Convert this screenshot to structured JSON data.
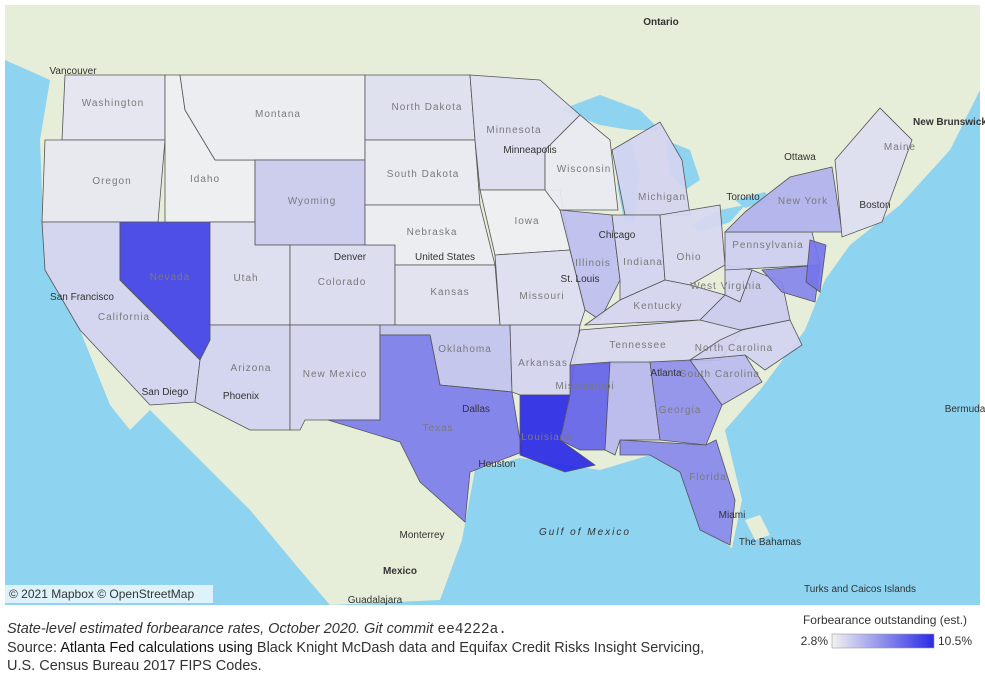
{
  "states": [
    {
      "label": "Washington",
      "value": 3.3
    },
    {
      "label": "Oregon",
      "value": 3.2
    },
    {
      "label": "California",
      "value": 4.0
    },
    {
      "label": "Nevada",
      "value": 9.6
    },
    {
      "label": "Idaho",
      "value": 2.9
    },
    {
      "label": "Montana",
      "value": 3.0
    },
    {
      "label": "Wyoming",
      "value": 4.3
    },
    {
      "label": "Utah",
      "value": 3.6
    },
    {
      "label": "Colorado",
      "value": 3.7
    },
    {
      "label": "Arizona",
      "value": 4.0
    },
    {
      "label": "New Mexico",
      "value": 3.9
    },
    {
      "label": "North Dakota",
      "value": 3.5
    },
    {
      "label": "South Dakota",
      "value": 3.1
    },
    {
      "label": "Nebraska",
      "value": 3.0
    },
    {
      "label": "Kansas",
      "value": 3.4
    },
    {
      "label": "Oklahoma",
      "value": 4.6
    },
    {
      "label": "Texas",
      "value": 7.3
    },
    {
      "label": "Minnesota",
      "value": 3.6
    },
    {
      "label": "Iowa",
      "value": 2.9
    },
    {
      "label": "Missouri",
      "value": 3.6
    },
    {
      "label": "Arkansas",
      "value": 3.9
    },
    {
      "label": "Louisiana",
      "value": 10.5
    },
    {
      "label": "Wisconsin",
      "value": 3.1
    },
    {
      "label": "Illinois",
      "value": 4.8
    },
    {
      "label": "Michigan",
      "value": 3.9
    },
    {
      "label": "Indiana",
      "value": 4.0
    },
    {
      "label": "Ohio",
      "value": 3.8
    },
    {
      "label": "Kentucky",
      "value": 3.9
    },
    {
      "label": "Tennessee",
      "value": 3.8
    },
    {
      "label": "Mississippi",
      "value": 8.3
    },
    {
      "value": 5.0
    },
    {
      "label": "Georgia",
      "value": 6.6
    },
    {
      "label": "Florida",
      "value": 6.9
    },
    {
      "label": "South Carolina",
      "value": 4.9
    },
    {
      "label": "North Carolina",
      "value": 4.0
    },
    {
      "label": "West Virginia",
      "value": 4.0
    },
    {
      "value": 4.3
    },
    {
      "label": "Pennsylvania",
      "value": 4.2
    },
    {
      "label": "New York",
      "value": 5.3
    },
    {
      "value": 7.0
    },
    {
      "value": 7.6
    },
    {
      "label": "Maine",
      "value": 3.6
    }
  ],
  "places": [
    "Ontario",
    "Vancouver",
    "Ottawa",
    "Toronto",
    "New Brunswick",
    "Minneapolis",
    "Chicago",
    "St. Louis",
    "Denver",
    "San Francisco",
    "San Diego",
    "Phoenix",
    "Dallas",
    "Houston",
    "Atlanta",
    "Miami",
    "Boston",
    "United States",
    "Gulf of Mexico",
    "Monterrey",
    "Mexico",
    "Guadalajara",
    "The Bahamas",
    "Turks and Caicos Islands",
    "Bermuda"
  ],
  "attribution": "© 2021 Mapbox © OpenStreetMap",
  "caption": {
    "line1": "State-level estimated forbearance rates, October 2020. Git commit",
    "commit": "ee4222a.",
    "line2_prefix": "Source:",
    "line2_link": "Atlanta Fed calculations using",
    "line2_rest": "Black Knight McDash data and Equifax Credit Risks Insight Servicing,",
    "line3": "U.S. Census Bureau 2017 FIPS Codes."
  },
  "legend": {
    "title": "Forbearance outstanding (est.)",
    "min": {
      "value": 2.8,
      "label": "2.8%"
    },
    "max": {
      "value": 10.5,
      "label": "10.5%"
    },
    "colors": [
      "#f2f2f2",
      "#2a2ae6"
    ]
  }
}
